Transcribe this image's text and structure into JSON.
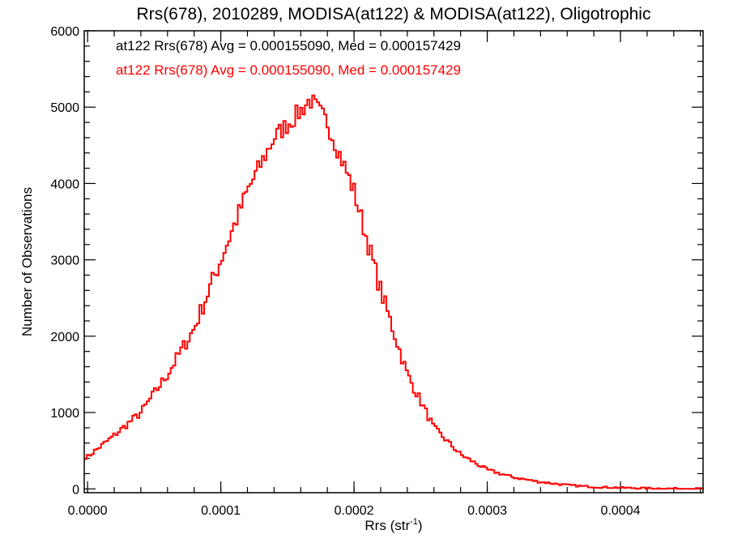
{
  "chart_data": {
    "type": "histogram",
    "title": "Rrs(678), 2010289, MODISA(at122) & MODISA(at122), Oligotrophic",
    "xlabel": "Rrs (str",
    "xlabel_sup": "-1",
    "xlabel_close": ")",
    "ylabel": "Number of Observations",
    "xlim": [
      -2.5e-06,
      0.000462
    ],
    "ylim": [
      -50,
      6000
    ],
    "x_ticks": [
      0.0,
      0.0001,
      0.0002,
      0.0003,
      0.0004
    ],
    "x_tick_labels": [
      "0.0000",
      "0.0001",
      "0.0002",
      "0.0003",
      "0.0004"
    ],
    "y_ticks": [
      0,
      1000,
      2000,
      3000,
      4000,
      5000,
      6000
    ],
    "y_tick_labels": [
      "0",
      "1000",
      "2000",
      "3000",
      "4000",
      "5000",
      "6000"
    ],
    "annotations": [
      {
        "text": "at122 Rrs(678) Avg = 0.000155090, Med = 0.000157429",
        "color": "#000000"
      },
      {
        "text": "at122 Rrs(678) Avg = 0.000155090, Med = 0.000157429",
        "color": "#ff0000"
      }
    ],
    "series": [
      {
        "color": "#ff0000",
        "x": [
          0.0,
          2e-05,
          4e-05,
          6e-05,
          8e-05,
          0.0001,
          0.00012,
          0.00014,
          0.00016,
          0.000167,
          0.00018,
          0.0002,
          0.00022,
          0.00024,
          0.00026,
          0.00028,
          0.0003,
          0.00032,
          0.00034,
          0.00036,
          0.00038,
          0.0004,
          0.00042,
          0.00044,
          0.00046
        ],
        "y": [
          420,
          700,
          1000,
          1500,
          2100,
          3000,
          3900,
          4600,
          4950,
          5100,
          4800,
          3900,
          2600,
          1500,
          800,
          450,
          250,
          150,
          90,
          50,
          25,
          15,
          8,
          4,
          2
        ]
      }
    ]
  }
}
